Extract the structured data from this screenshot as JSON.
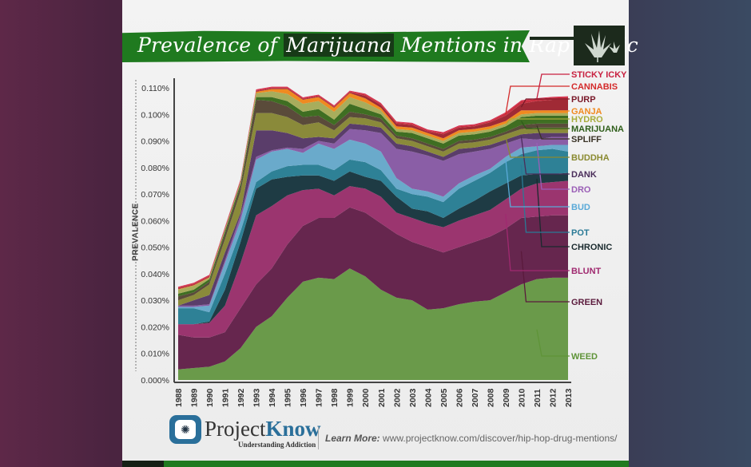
{
  "header": {
    "title_pre": "Prevalence of ",
    "title_highlight": "Marijuana",
    "title_post": " Mentions in Rap Music"
  },
  "footer": {
    "brand_a": "Project",
    "brand_b": "Know",
    "tagline": "Understanding Addiction",
    "learn_label": "Learn More:",
    "learn_url": "www.projectknow.com/discover/hip-hop-drug-mentions/"
  },
  "chart_data": {
    "type": "area",
    "stacked": true,
    "title": "Prevalence of Marijuana Mentions in Rap Music",
    "xlabel": "",
    "ylabel": "PREVALENCE",
    "ylim": [
      0,
      0.11
    ],
    "yticks": [
      "0.000%",
      "0.010%",
      "0.020%",
      "0.030%",
      "0.040%",
      "0.050%",
      "0.060%",
      "0.070%",
      "0.080%",
      "0.090%",
      "0.100%",
      "0.110%"
    ],
    "yunit": "%",
    "grid": false,
    "legend_placement": "right",
    "x": [
      "1988",
      "1989",
      "1990",
      "1991",
      "1992",
      "1993",
      "1994",
      "1995",
      "1996",
      "1997",
      "1998",
      "1999",
      "2000",
      "2001",
      "2002",
      "2003",
      "2004",
      "2005",
      "2006",
      "2007",
      "2008",
      "2009",
      "2010",
      "2011",
      "2012",
      "2013"
    ],
    "series": [
      {
        "name": "WEED",
        "color": "#6a9a4a",
        "label_color": "#5f9438",
        "values": [
          0.004,
          0.0045,
          0.005,
          0.007,
          0.012,
          0.02,
          0.024,
          0.031,
          0.037,
          0.0385,
          0.038,
          0.042,
          0.039,
          0.034,
          0.031,
          0.03,
          0.0265,
          0.027,
          0.0285,
          0.0295,
          0.03,
          0.033,
          0.036,
          0.038,
          0.0385,
          0.0385
        ]
      },
      {
        "name": "GREEN",
        "color": "#66264e",
        "label_color": "#5a1a3c",
        "values": [
          0.013,
          0.0115,
          0.011,
          0.011,
          0.015,
          0.016,
          0.018,
          0.02,
          0.021,
          0.0225,
          0.023,
          0.023,
          0.024,
          0.025,
          0.024,
          0.022,
          0.0235,
          0.021,
          0.0215,
          0.0225,
          0.024,
          0.024,
          0.025,
          0.0235,
          0.0235,
          0.0235
        ]
      },
      {
        "name": "BLUNT",
        "color": "#9b356f",
        "label_color": "#a02a70",
        "values": [
          0.004,
          0.005,
          0.0055,
          0.01,
          0.017,
          0.026,
          0.0235,
          0.0185,
          0.0135,
          0.011,
          0.0085,
          0.008,
          0.009,
          0.01,
          0.008,
          0.009,
          0.009,
          0.0095,
          0.01,
          0.01,
          0.01,
          0.011,
          0.011,
          0.0125,
          0.0125,
          0.013
        ]
      },
      {
        "name": "CHRONIC",
        "color": "#1e3b44",
        "label_color": "#1a2a2e",
        "values": [
          0,
          0,
          0.0005,
          0.006,
          0.008,
          0.01,
          0.01,
          0.007,
          0.0055,
          0.005,
          0.0055,
          0.0055,
          0.0045,
          0.006,
          0.006,
          0.0035,
          0.0045,
          0.0035,
          0.0045,
          0.0055,
          0.007,
          0.006,
          0.005,
          0.0035,
          0.003,
          0.003
        ]
      },
      {
        "name": "POT",
        "color": "#2e8196",
        "label_color": "#2a7a96",
        "values": [
          0.006,
          0.006,
          0.0035,
          0.006,
          0.004,
          0.0025,
          0.003,
          0.004,
          0.004,
          0.004,
          0.004,
          0.0045,
          0.0055,
          0.004,
          0.003,
          0.0055,
          0.0055,
          0.006,
          0.0075,
          0.0075,
          0.007,
          0.008,
          0.008,
          0.009,
          0.0095,
          0.008
        ]
      },
      {
        "name": "BUD",
        "color": "#6aaacb",
        "label_color": "#5aaad8",
        "values": [
          0.0005,
          0.0005,
          0.0025,
          0.004,
          0.004,
          0.0085,
          0.0075,
          0.0065,
          0.0045,
          0.008,
          0.008,
          0.0075,
          0.007,
          0.007,
          0.004,
          0.002,
          0.002,
          0.002,
          0.002,
          0.002,
          0.0015,
          0.002,
          0.0025,
          0.0015,
          0.0015,
          0.0025
        ]
      },
      {
        "name": "DRO",
        "color": "#8a5ea6",
        "label_color": "#9a5eb6",
        "values": [
          0.0005,
          0.0005,
          0.0005,
          0.001,
          0.002,
          0.001,
          0.0005,
          0.0005,
          0.0015,
          0.001,
          0.002,
          0.004,
          0.005,
          0.007,
          0.011,
          0.014,
          0.0135,
          0.0135,
          0.011,
          0.009,
          0.0075,
          0.005,
          0.0035,
          0.0025,
          0.003,
          0.003
        ]
      },
      {
        "name": "DANK",
        "color": "#5a3d6a",
        "label_color": "#4a2d5a",
        "values": [
          0,
          0.002,
          0.0035,
          0.003,
          0.001,
          0.01,
          0.0075,
          0.0055,
          0.004,
          0.0015,
          0.002,
          0.002,
          0.002,
          0.002,
          0.002,
          0.002,
          0.0015,
          0.0015,
          0.002,
          0.0015,
          0.0015,
          0.0015,
          0.0015,
          0.0025,
          0.0015,
          0.0015
        ]
      },
      {
        "name": "BUDDHA",
        "color": "#8a8a3a",
        "label_color": "#8a8a30",
        "values": [
          0.002,
          0.002,
          0.004,
          0.005,
          0.008,
          0.0065,
          0.0065,
          0.006,
          0.005,
          0.0055,
          0.003,
          0.0025,
          0.0025,
          0.002,
          0.002,
          0.002,
          0.002,
          0.002,
          0.002,
          0.002,
          0.002,
          0.002,
          0.002,
          0.002,
          0.002,
          0.002
        ]
      },
      {
        "name": "SPLIFF",
        "color": "#5a4b3a",
        "label_color": "#3a3326",
        "values": [
          0.0015,
          0.001,
          0.001,
          0.002,
          0.002,
          0.005,
          0.0045,
          0.004,
          0.003,
          0.0025,
          0.002,
          0.002,
          0.0015,
          0.0015,
          0.001,
          0.001,
          0.001,
          0.001,
          0.001,
          0.001,
          0.001,
          0.001,
          0.0015,
          0.0015,
          0.0015,
          0.0015
        ]
      },
      {
        "name": "MARIJUANA",
        "color": "#3f6e22",
        "label_color": "#2f5e1a",
        "values": [
          0.001,
          0.001,
          0.001,
          0.001,
          0.001,
          0.001,
          0.0015,
          0.002,
          0.002,
          0.0025,
          0.002,
          0.003,
          0.002,
          0.0015,
          0.0015,
          0.002,
          0.002,
          0.002,
          0.002,
          0.002,
          0.002,
          0.002,
          0.003,
          0.003,
          0.003,
          0.003
        ]
      },
      {
        "name": "HYDRO",
        "color": "#a8ad5c",
        "label_color": "#a8ad3c",
        "values": [
          0.0015,
          0.0015,
          0.0005,
          0.0005,
          0.0005,
          0.0015,
          0.0022,
          0.0027,
          0.003,
          0.003,
          0.003,
          0.0025,
          0.0025,
          0.0015,
          0.001,
          0.001,
          0.001,
          0.001,
          0.001,
          0.001,
          0.001,
          0.001,
          0.001,
          0.001,
          0.001,
          0.001
        ]
      },
      {
        "name": "GANJA",
        "color": "#f08a20",
        "label_color": "#f08a20",
        "values": [
          0.0002,
          0.0002,
          0.0002,
          0.0002,
          0.0002,
          0.0005,
          0.0008,
          0.0018,
          0.0015,
          0.0015,
          0.0015,
          0.0015,
          0.0015,
          0.001,
          0.001,
          0.001,
          0.001,
          0.001,
          0.001,
          0.001,
          0.001,
          0.001,
          0.0015,
          0.001,
          0.001,
          0.001
        ]
      },
      {
        "name": "PURP",
        "color": "#a02a35",
        "label_color": "#7a1a2a",
        "values": [
          0.0003,
          0.0003,
          0.0003,
          0.0003,
          0.0003,
          0.0003,
          0.0003,
          0.0003,
          0.0003,
          0.0003,
          0.0003,
          0.0003,
          0.001,
          0.001,
          0.001,
          0.001,
          0.0005,
          0.0015,
          0.001,
          0.001,
          0.0015,
          0.002,
          0.0025,
          0.0035,
          0.004,
          0.004
        ]
      },
      {
        "name": "CANNABIS",
        "color": "#c83040",
        "label_color": "#d42a2a",
        "values": [
          0.0003,
          0.0003,
          0.0003,
          0.0003,
          0.0003,
          0.0003,
          0.0003,
          0.0003,
          0.0003,
          0.0003,
          0.0003,
          0.0003,
          0.0005,
          0.0005,
          0.0005,
          0.0005,
          0.0005,
          0.0005,
          0.0005,
          0.0005,
          0.0005,
          0.001,
          0.001,
          0.0008,
          0.0008,
          0.001
        ]
      },
      {
        "name": "STICKY ICKY",
        "color": "#d8284a",
        "label_color": "#c8203f",
        "values": [
          0.0003,
          0.0003,
          0.0003,
          0.0003,
          0.0003,
          0.0003,
          0.0003,
          0.0003,
          0.0003,
          0.0003,
          0.0003,
          0.0003,
          0.0003,
          0.0003,
          0.0003,
          0.0003,
          0.0003,
          0.0003,
          0.0003,
          0.0003,
          0.0003,
          0.0003,
          0.0003,
          0.0003,
          0.0003,
          0.0003
        ]
      }
    ]
  }
}
